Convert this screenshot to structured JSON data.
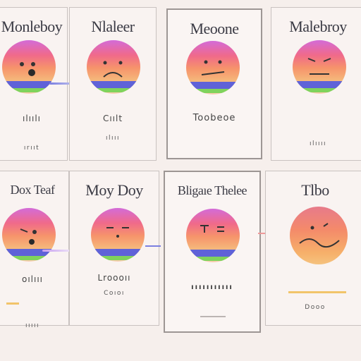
{
  "cards": [
    {
      "title": "Monleboy",
      "label_a": "ılıılı",
      "label_b": "ırııt"
    },
    {
      "title": "Nlaleer",
      "label_a": "Cıılt",
      "label_b": "ılııı"
    },
    {
      "title": "Meoone",
      "label_a": "Toobeoe",
      "label_b": ""
    },
    {
      "title": "Malebroy",
      "label_a": "",
      "label_b": "ılıııı"
    },
    {
      "title": "Dox Teaf",
      "label_a": "oılııı",
      "label_b": "ııııı"
    },
    {
      "title": "Moy Doy",
      "label_a": "Lroooıı",
      "label_b": "Coıoı"
    },
    {
      "title": "Bligaıe Thelee",
      "label_a": "",
      "label_b": "ııııııııııı"
    },
    {
      "title": "Tlbo",
      "label_a": "",
      "label_b": "Dooo"
    }
  ],
  "colors": {
    "background": "#f6efec",
    "face_top": "#d36bd8",
    "face_bottom": "#f7ceb0",
    "band_blue": "#5f62d8",
    "band_green": "#7fd35c",
    "accent_yellow": "#f2c46a"
  }
}
